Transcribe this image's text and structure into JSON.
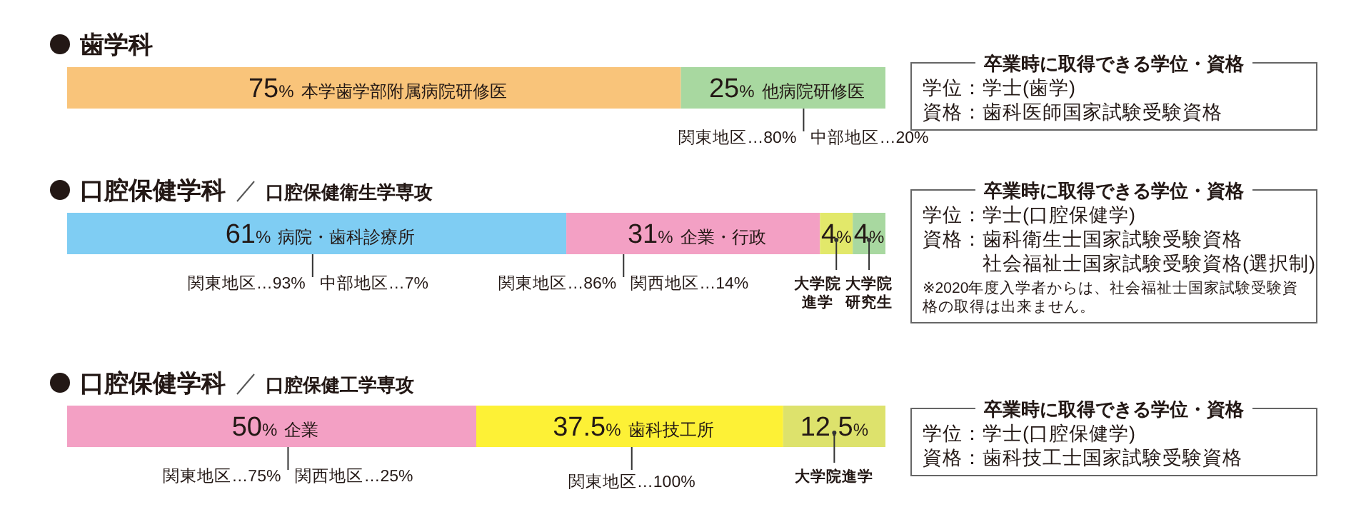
{
  "chart_data": [
    {
      "type": "bar",
      "orientation": "horizontal",
      "stacked": true,
      "title": "歯学科",
      "categories": [
        null
      ],
      "series": [
        {
          "name": "本学歯学部附属病院研修医",
          "color": "#f9c47a",
          "values": [
            75
          ],
          "value_labels": [
            "75%"
          ]
        },
        {
          "name": "他病院研修医",
          "color": "#a8d8a0",
          "values": [
            25
          ],
          "value_labels": [
            "25%"
          ]
        }
      ],
      "annotations": [
        "関東地区…80%",
        "中部地区…20%"
      ]
    },
    {
      "type": "other",
      "title": "卒業時に取得できる学位・資格",
      "annotations": [
        "学位：学士(歯学)",
        "資格：歯科医師国家試験受験資格"
      ]
    },
    {
      "type": "bar",
      "orientation": "horizontal",
      "stacked": true,
      "title": "口腔保健学科",
      "subtitle": "口腔保健衛生学専攻",
      "categories": [
        null
      ],
      "series": [
        {
          "name": "病院・歯科診療所",
          "color": "#7fcdf3",
          "values": [
            61
          ],
          "value_labels": [
            "61%"
          ]
        },
        {
          "name": "企業・行政",
          "color": "#f3a0c4",
          "values": [
            31
          ],
          "value_labels": [
            "31%"
          ]
        },
        {
          "name": "大学院進学",
          "color": "#e2e86a",
          "values": [
            4
          ],
          "value_labels": [
            "4%"
          ]
        },
        {
          "name": "大学院研究生",
          "color": "#a8d8a0",
          "values": [
            4
          ],
          "value_labels": [
            "4%"
          ]
        }
      ],
      "annotations": [
        "関東地区…93%",
        "中部地区…7%",
        "関東地区…86%",
        "関西地区…14%"
      ]
    },
    {
      "type": "other",
      "title": "卒業時に取得できる学位・資格",
      "annotations": [
        "学位：学士(口腔保健学)",
        "資格：歯科衛生士国家試験受験資格",
        "社会福祉士国家試験受験資格(選択制)",
        "※2020年度入学者からは、社会福祉士国家試験受験資格の取得は出来ません。"
      ]
    },
    {
      "type": "bar",
      "orientation": "horizontal",
      "stacked": true,
      "title": "口腔保健学科",
      "subtitle": "口腔保健工学専攻",
      "categories": [
        null
      ],
      "series": [
        {
          "name": "企業",
          "color": "#f3a0c4",
          "values": [
            50
          ],
          "value_labels": [
            "50%"
          ]
        },
        {
          "name": "歯科技工所",
          "color": "#fdf136",
          "values": [
            37.5
          ],
          "value_labels": [
            "37.5%"
          ]
        },
        {
          "name": "大学院進学",
          "color": "#dde26c",
          "values": [
            12.5
          ],
          "value_labels": [
            "12.5%"
          ]
        }
      ],
      "annotations": [
        "関東地区…75%",
        "関西地区…25%",
        "関東地区…100%"
      ]
    },
    {
      "type": "other",
      "title": "卒業時に取得できる学位・資格",
      "annotations": [
        "学位：学士(口腔保健学)",
        "資格：歯科技工士国家試験受験資格"
      ]
    }
  ]
}
